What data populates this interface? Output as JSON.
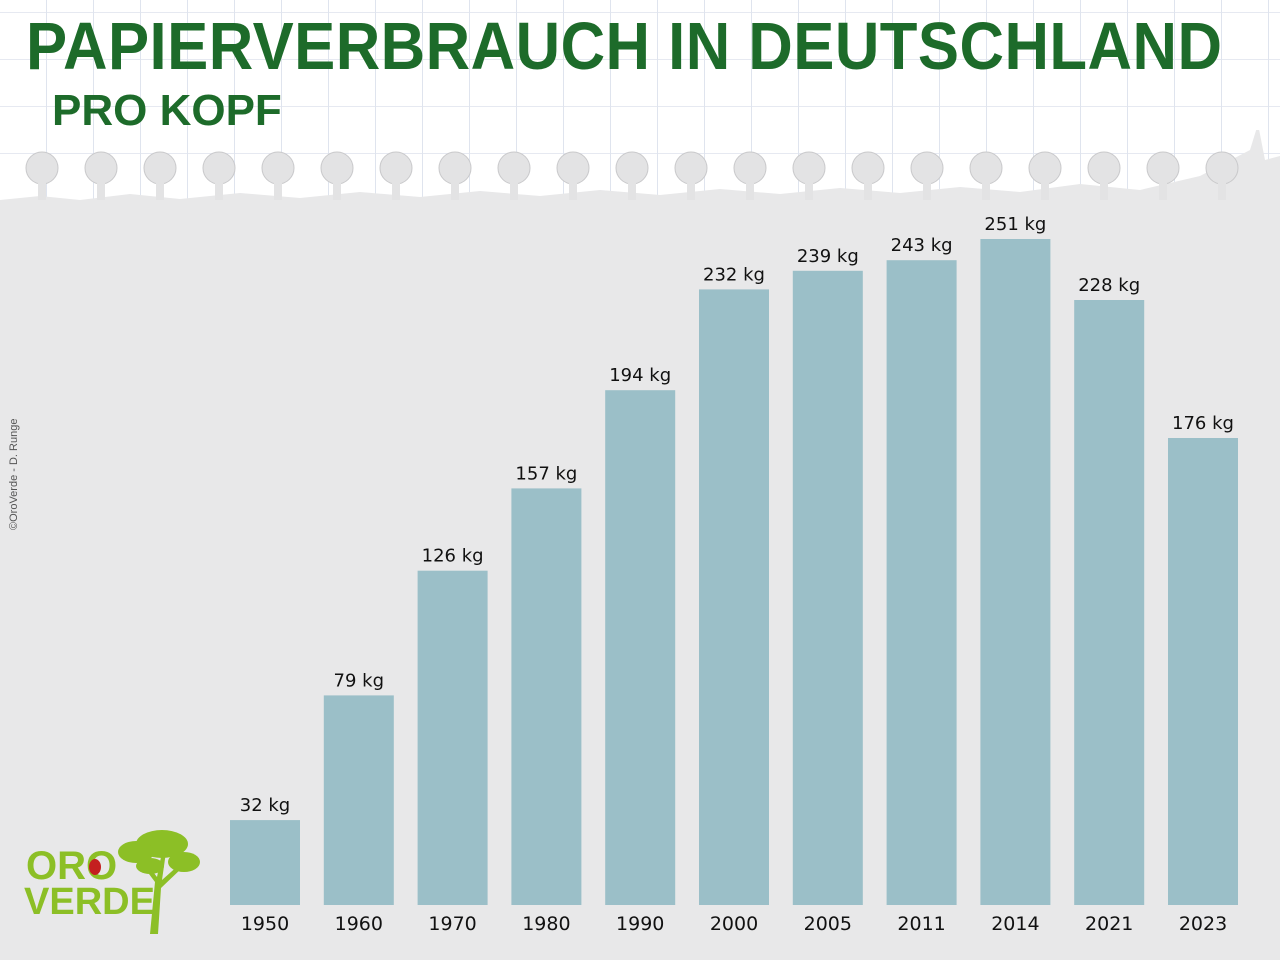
{
  "header": {
    "title": "PAPIERVERBRAUCH IN DEUTSCHLAND",
    "subtitle": "PRO KOPF"
  },
  "credit": "©OroVerde - D. Runge",
  "logo": {
    "line1": "ORO",
    "line2": "VERDE"
  },
  "colors": {
    "title": "#1d6b2a",
    "bar": "#9bbfc8",
    "background": "#e8e8e9",
    "logo_green": "#8cbf26",
    "logo_dot": "#c41f1f"
  },
  "chart_data": {
    "type": "bar",
    "title": "PAPIERVERBRAUCH IN DEUTSCHLAND",
    "subtitle": "PRO KOPF",
    "categories": [
      "1950",
      "1960",
      "1970",
      "1980",
      "1990",
      "2000",
      "2005",
      "2011",
      "2014",
      "2021",
      "2023"
    ],
    "values": [
      32,
      79,
      126,
      157,
      194,
      232,
      239,
      243,
      251,
      228,
      176
    ],
    "value_labels": [
      "32 kg",
      "79 kg",
      "126 kg",
      "157 kg",
      "194 kg",
      "232 kg",
      "239 kg",
      "243 kg",
      "251 kg",
      "228 kg",
      "176 kg"
    ],
    "unit": "kg",
    "xlabel": "",
    "ylabel": "",
    "ylim": [
      0,
      251
    ],
    "grid": false,
    "legend": "none"
  }
}
